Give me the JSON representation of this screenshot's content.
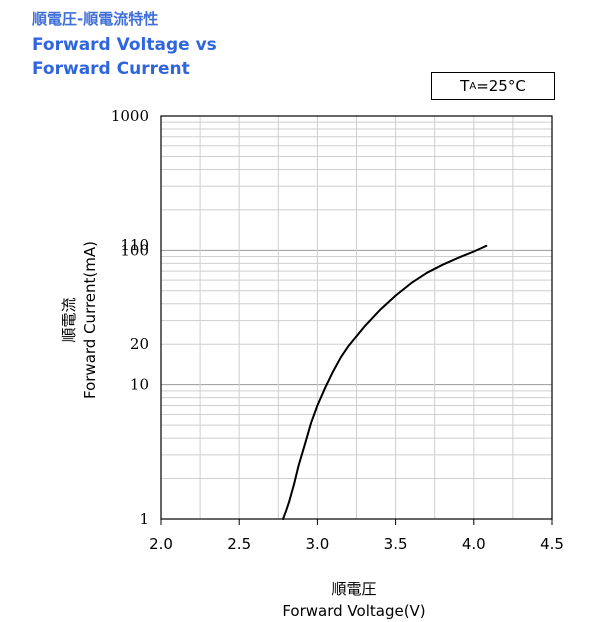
{
  "title": {
    "jp": "順電圧-順電流特性",
    "en_line1": "Forward Voltage vs",
    "en_line2": "Forward Current"
  },
  "condition": {
    "symbol": "T",
    "subscript": "A",
    "value": "=25°C"
  },
  "chart_data": {
    "type": "line",
    "x_label_jp": "順電圧",
    "x_label_en": "Forward Voltage(V)",
    "y_label_jp": "順電流",
    "y_label_en": "Forward Current(mA)",
    "xlim": [
      2.0,
      4.5
    ],
    "ylim": [
      1,
      1000
    ],
    "y_scale": "log",
    "x_ticks": [
      "2.0",
      "2.5",
      "3.0",
      "3.5",
      "4.0",
      "4.5"
    ],
    "y_ticks": [
      {
        "value": 1,
        "label": "1"
      },
      {
        "value": 10,
        "label": "10"
      },
      {
        "value": 20,
        "label": "20"
      },
      {
        "value": 100,
        "label": "100"
      },
      {
        "value": 110,
        "label": "110"
      },
      {
        "value": 1000,
        "label": "1000"
      }
    ],
    "grid": true,
    "series": [
      {
        "color": "#000000",
        "x": [
          2.78,
          2.8,
          2.82,
          2.85,
          2.88,
          2.92,
          2.96,
          3.0,
          3.05,
          3.1,
          3.15,
          3.2,
          3.3,
          3.4,
          3.5,
          3.6,
          3.7,
          3.8,
          3.9,
          4.0,
          4.05,
          4.08
        ],
        "y": [
          1.0,
          1.15,
          1.35,
          1.8,
          2.5,
          3.6,
          5.2,
          7.0,
          9.5,
          12.5,
          16.0,
          19.5,
          27,
          36,
          46,
          57,
          68,
          78,
          88,
          98,
          104,
          108
        ]
      }
    ]
  }
}
